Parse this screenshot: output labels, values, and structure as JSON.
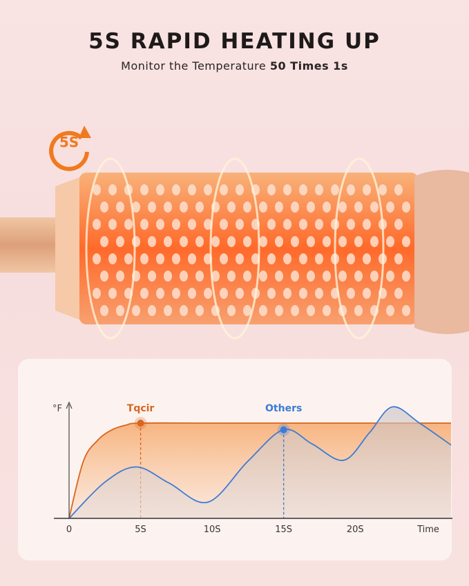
{
  "header": {
    "title": "5S RAPID HEATING UP",
    "subtitle_prefix": "Monitor the Temperature ",
    "subtitle_bold": "50 Times 1s"
  },
  "badge": {
    "text": "5S",
    "icon": "circular-arrow-timer-icon",
    "color": "#f07a1e"
  },
  "chart_data": {
    "type": "area",
    "xlabel": "Time",
    "ylabel": "°F",
    "x_ticks": [
      "0",
      "5S",
      "10S",
      "15S",
      "20S"
    ],
    "xlim": [
      0,
      26.7
    ],
    "ylim": [
      0,
      130
    ],
    "grid": false,
    "series": [
      {
        "name": "Tqcir",
        "color": "#d9651e",
        "x": [
          0,
          1,
          2,
          3,
          4,
          5,
          10,
          15,
          20,
          26.7
        ],
        "y": [
          0,
          60,
          82,
          93,
          98,
          100,
          100,
          100,
          100,
          100
        ],
        "marker_at": 5
      },
      {
        "name": "Others",
        "color": "#3d7bd6",
        "x": [
          0,
          2.5,
          4.7,
          7,
          9.7,
          12.5,
          15,
          17,
          19.2,
          21,
          22.6,
          24.5,
          26.7
        ],
        "y": [
          0,
          38,
          54,
          37,
          17,
          60,
          93,
          78,
          61,
          90,
          117,
          100,
          77
        ],
        "marker_at": 15
      }
    ]
  }
}
